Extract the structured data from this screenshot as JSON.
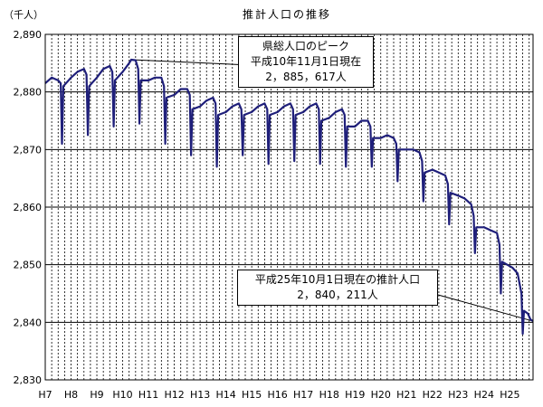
{
  "chart_data": {
    "type": "line",
    "title": "推計人口の推移",
    "unit_label": "（千人）",
    "ylim": [
      2830,
      2890
    ],
    "y_ticks": [
      "2,830",
      "2,840",
      "2,850",
      "2,860",
      "2,870",
      "2,880",
      "2,890"
    ],
    "y_tick_values": [
      2830,
      2840,
      2850,
      2860,
      2870,
      2880,
      2890
    ],
    "x_ticks": [
      "H7",
      "H8",
      "H9",
      "H10",
      "H11",
      "H12",
      "H13",
      "H14",
      "H15",
      "H16",
      "H17",
      "H18",
      "H19",
      "H20",
      "H21",
      "H22",
      "H23",
      "H24",
      "H25"
    ],
    "x_tick_values": [
      7,
      8,
      9,
      10,
      11,
      12,
      13,
      14,
      15,
      16,
      17,
      18,
      19,
      20,
      21,
      22,
      23,
      24,
      25
    ],
    "xlim": [
      7.0,
      25.9
    ],
    "grid": true,
    "series": [
      {
        "points": [
          [
            7.0,
            2881.5
          ],
          [
            7.25,
            2882.5
          ],
          [
            7.5,
            2882.0
          ],
          [
            7.6,
            2881.5
          ],
          [
            7.65,
            2871.0
          ],
          [
            7.7,
            2881.0
          ],
          [
            8.0,
            2882.5
          ],
          [
            8.25,
            2883.5
          ],
          [
            8.5,
            2884.0
          ],
          [
            8.6,
            2883.0
          ],
          [
            8.65,
            2872.5
          ],
          [
            8.7,
            2881.0
          ],
          [
            9.0,
            2882.5
          ],
          [
            9.25,
            2884.0
          ],
          [
            9.5,
            2884.5
          ],
          [
            9.6,
            2883.5
          ],
          [
            9.65,
            2874.0
          ],
          [
            9.7,
            2882.0
          ],
          [
            10.0,
            2883.5
          ],
          [
            10.25,
            2885.0
          ],
          [
            10.33,
            2885.6
          ],
          [
            10.5,
            2885.5
          ],
          [
            10.6,
            2884.0
          ],
          [
            10.65,
            2874.5
          ],
          [
            10.7,
            2882.0
          ],
          [
            11.0,
            2882.0
          ],
          [
            11.25,
            2882.5
          ],
          [
            11.5,
            2882.5
          ],
          [
            11.6,
            2881.0
          ],
          [
            11.65,
            2871.0
          ],
          [
            11.7,
            2879.0
          ],
          [
            12.0,
            2879.5
          ],
          [
            12.25,
            2880.5
          ],
          [
            12.5,
            2880.5
          ],
          [
            12.6,
            2879.5
          ],
          [
            12.65,
            2869.0
          ],
          [
            12.7,
            2877.0
          ],
          [
            13.0,
            2877.5
          ],
          [
            13.25,
            2878.5
          ],
          [
            13.5,
            2879.0
          ],
          [
            13.6,
            2878.0
          ],
          [
            13.65,
            2867.0
          ],
          [
            13.7,
            2876.0
          ],
          [
            14.0,
            2876.5
          ],
          [
            14.25,
            2877.5
          ],
          [
            14.5,
            2878.0
          ],
          [
            14.6,
            2877.0
          ],
          [
            14.65,
            2869.0
          ],
          [
            14.7,
            2876.0
          ],
          [
            15.0,
            2876.5
          ],
          [
            15.25,
            2877.5
          ],
          [
            15.5,
            2878.0
          ],
          [
            15.6,
            2877.0
          ],
          [
            15.65,
            2867.5
          ],
          [
            15.7,
            2876.0
          ],
          [
            16.0,
            2876.5
          ],
          [
            16.25,
            2877.5
          ],
          [
            16.5,
            2878.0
          ],
          [
            16.6,
            2877.0
          ],
          [
            16.65,
            2868.0
          ],
          [
            16.7,
            2876.0
          ],
          [
            17.0,
            2876.5
          ],
          [
            17.25,
            2877.5
          ],
          [
            17.5,
            2878.0
          ],
          [
            17.6,
            2877.0
          ],
          [
            17.65,
            2867.5
          ],
          [
            17.7,
            2875.0
          ],
          [
            18.0,
            2875.5
          ],
          [
            18.25,
            2876.5
          ],
          [
            18.5,
            2877.0
          ],
          [
            18.6,
            2876.0
          ],
          [
            18.65,
            2867.0
          ],
          [
            18.7,
            2874.0
          ],
          [
            19.0,
            2874.0
          ],
          [
            19.25,
            2875.0
          ],
          [
            19.5,
            2875.0
          ],
          [
            19.6,
            2874.0
          ],
          [
            19.65,
            2867.0
          ],
          [
            19.7,
            2872.0
          ],
          [
            20.0,
            2872.0
          ],
          [
            20.25,
            2872.5
          ],
          [
            20.5,
            2872.0
          ],
          [
            20.6,
            2871.0
          ],
          [
            20.65,
            2864.5
          ],
          [
            20.7,
            2870.0
          ],
          [
            21.0,
            2870.0
          ],
          [
            21.25,
            2870.0
          ],
          [
            21.5,
            2869.5
          ],
          [
            21.6,
            2868.0
          ],
          [
            21.65,
            2861.0
          ],
          [
            21.7,
            2866.0
          ],
          [
            22.0,
            2866.5
          ],
          [
            22.25,
            2866.0
          ],
          [
            22.5,
            2865.5
          ],
          [
            22.6,
            2864.0
          ],
          [
            22.65,
            2857.0
          ],
          [
            22.7,
            2862.5
          ],
          [
            23.0,
            2862.0
          ],
          [
            23.25,
            2861.5
          ],
          [
            23.5,
            2860.5
          ],
          [
            23.6,
            2858.5
          ],
          [
            23.65,
            2852.0
          ],
          [
            23.7,
            2856.5
          ],
          [
            24.0,
            2856.5
          ],
          [
            24.25,
            2856.0
          ],
          [
            24.5,
            2855.5
          ],
          [
            24.6,
            2853.5
          ],
          [
            24.65,
            2845.0
          ],
          [
            24.7,
            2850.5
          ],
          [
            24.9,
            2850.0
          ],
          [
            25.1,
            2849.5
          ],
          [
            25.3,
            2848.5
          ],
          [
            25.45,
            2845.0
          ],
          [
            25.5,
            2838.0
          ],
          [
            25.55,
            2842.0
          ],
          [
            25.7,
            2841.5
          ],
          [
            25.8,
            2840.5
          ],
          [
            25.9,
            2840.2
          ]
        ]
      }
    ],
    "annotations": [
      {
        "lines": [
          "県総人口のピーク",
          "平成10年11月1日現在",
          "2，885，617人"
        ],
        "target": [
          10.33,
          2885.6
        ]
      },
      {
        "lines": [
          "平成25年10月1日現在の推計人口",
          "2，840，211人"
        ],
        "target": [
          25.9,
          2840.2
        ]
      }
    ]
  }
}
